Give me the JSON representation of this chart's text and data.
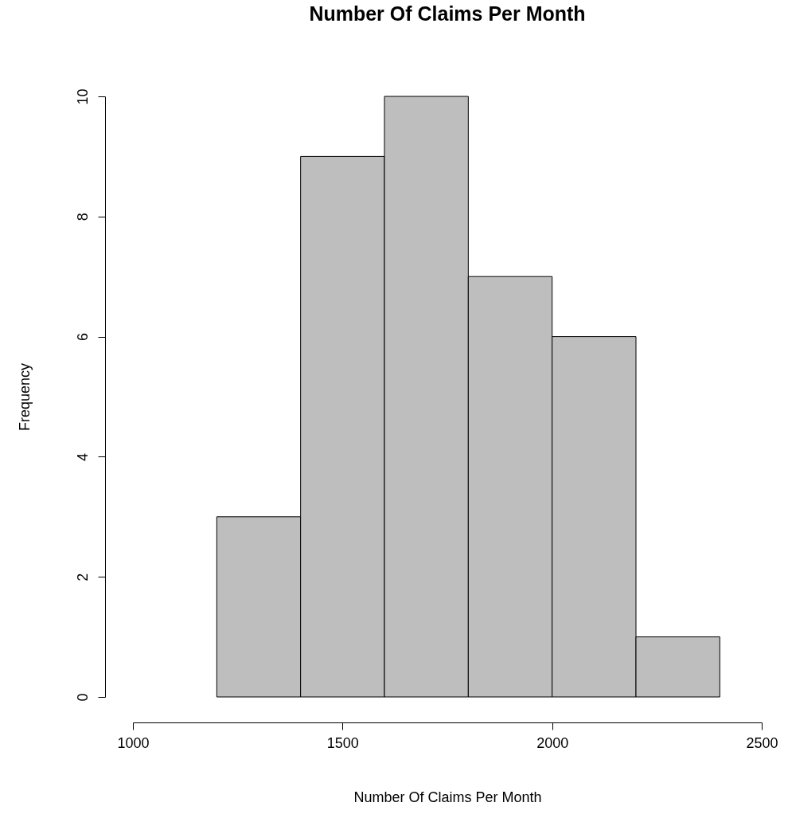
{
  "chart_data": {
    "type": "histogram",
    "title": "Number Of Claims Per Month",
    "xlabel": "Number Of Claims Per Month",
    "ylabel": "Frequency",
    "bins": [
      1200,
      1400,
      1600,
      1800,
      2000,
      2200,
      2400
    ],
    "values": [
      3,
      9,
      10,
      7,
      6,
      1
    ],
    "color": "#bebebe",
    "xlim": [
      1000,
      2500
    ],
    "xticks": [
      1000,
      1500,
      2000,
      2500
    ],
    "ylim": [
      0,
      10
    ],
    "yticks": [
      0,
      2,
      4,
      6,
      8,
      10
    ],
    "grid": false
  }
}
